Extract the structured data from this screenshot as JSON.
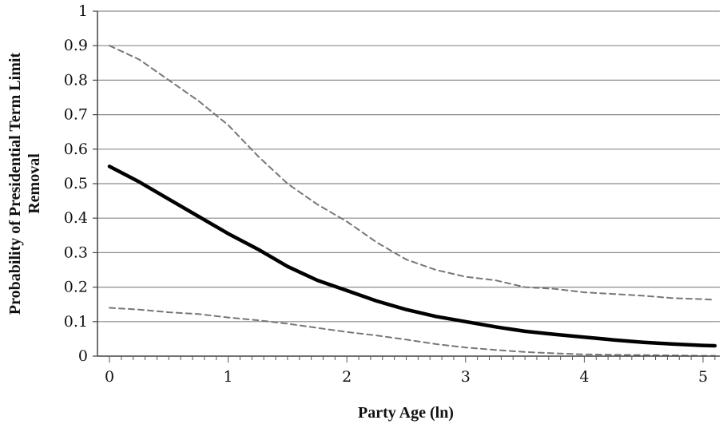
{
  "chart_data": {
    "type": "line",
    "xlabel": "Party Age (ln)",
    "ylabel_lines": [
      "Probability of Presidential Term Limit",
      "Removal"
    ],
    "xlim": [
      0,
      5.1
    ],
    "ylim": [
      0,
      1
    ],
    "x_ticks": [
      0,
      1,
      2,
      3,
      4,
      5
    ],
    "y_ticks": [
      0,
      0.1,
      0.2,
      0.3,
      0.4,
      0.5,
      0.6,
      0.7,
      0.8,
      0.9,
      1
    ],
    "x_minor_step": 0.1,
    "grid": "horizontal",
    "legend": "none",
    "series": [
      {
        "style": "solid",
        "color": "#000000",
        "x": [
          0,
          0.25,
          0.5,
          0.75,
          1,
          1.25,
          1.5,
          1.75,
          2,
          2.25,
          2.5,
          2.75,
          3,
          3.25,
          3.5,
          3.75,
          4,
          4.25,
          4.5,
          4.75,
          5,
          5.1
        ],
        "y": [
          0.55,
          0.505,
          0.455,
          0.405,
          0.355,
          0.31,
          0.26,
          0.22,
          0.19,
          0.16,
          0.135,
          0.115,
          0.1,
          0.085,
          0.072,
          0.063,
          0.055,
          0.047,
          0.04,
          0.035,
          0.031,
          0.03
        ]
      },
      {
        "style": "dashed",
        "color": "#777777",
        "x": [
          0,
          0.25,
          0.5,
          0.75,
          1,
          1.25,
          1.5,
          1.75,
          2,
          2.25,
          2.5,
          2.75,
          3,
          3.25,
          3.5,
          3.75,
          4,
          4.25,
          4.5,
          4.75,
          5,
          5.1
        ],
        "y": [
          0.9,
          0.86,
          0.8,
          0.74,
          0.67,
          0.58,
          0.5,
          0.44,
          0.39,
          0.33,
          0.28,
          0.25,
          0.23,
          0.22,
          0.2,
          0.195,
          0.185,
          0.18,
          0.175,
          0.168,
          0.165,
          0.163
        ]
      },
      {
        "style": "dashed",
        "color": "#777777",
        "x": [
          0,
          0.25,
          0.5,
          0.75,
          1,
          1.25,
          1.5,
          1.75,
          2,
          2.25,
          2.5,
          2.75,
          3,
          3.25,
          3.5,
          3.75,
          4,
          4.25,
          4.5,
          4.75,
          5,
          5.1
        ],
        "y": [
          0.14,
          0.135,
          0.127,
          0.122,
          0.112,
          0.104,
          0.094,
          0.082,
          0.07,
          0.06,
          0.048,
          0.035,
          0.025,
          0.018,
          0.012,
          0.008,
          0.005,
          0.004,
          0.003,
          0.002,
          0.001,
          0.001
        ]
      }
    ]
  }
}
